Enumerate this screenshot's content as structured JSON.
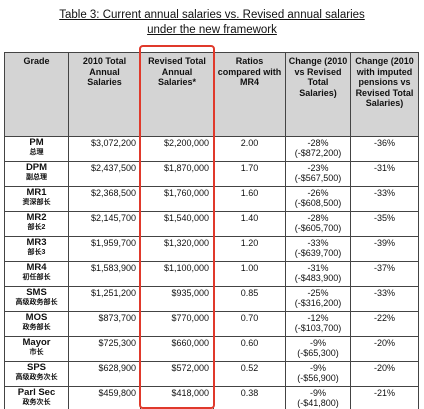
{
  "title_lines": [
    "Table 3: Current annual salaries vs. Revised annual salaries",
    "under the new framework"
  ],
  "table": {
    "header": [
      "Grade",
      "2010 Total Annual Salaries",
      "Revised Total Annual Salaries*",
      "Ratios compared with MR4",
      "Change (2010 vs Revised Total Salaries)",
      "Change (2010 with imputed pensions vs Revised Total Salaries)"
    ],
    "rows": [
      [
        [
          "PM",
          "总理"
        ],
        "$3,072,200",
        "$2,200,000",
        "2.00",
        [
          "-28%",
          "(-$872,200)"
        ],
        "-36%"
      ],
      [
        [
          "DPM",
          "副总理"
        ],
        "$2,437,500",
        "$1,870,000",
        "1.70",
        [
          "-23%",
          "(-$567,500)"
        ],
        "-31%"
      ],
      [
        [
          "MR1",
          "资深部长"
        ],
        "$2,368,500",
        "$1,760,000",
        "1.60",
        [
          "-26%",
          "(-$608,500)"
        ],
        "-33%"
      ],
      [
        [
          "MR2",
          "部长2"
        ],
        "$2,145,700",
        "$1,540,000",
        "1.40",
        [
          "-28%",
          "(-$605,700)"
        ],
        "-35%"
      ],
      [
        [
          "MR3",
          "部长3"
        ],
        "$1,959,700",
        "$1,320,000",
        "1.20",
        [
          "-33%",
          "(-$639,700)"
        ],
        "-39%"
      ],
      [
        [
          "MR4",
          "初任部长"
        ],
        "$1,583,900",
        "$1,100,000",
        "1.00",
        [
          "-31%",
          "(-$483,900)"
        ],
        "-37%"
      ],
      [
        [
          "SMS",
          "高级政务部长"
        ],
        "$1,251,200",
        "$935,000",
        "0.85",
        [
          "-25%",
          "(-$316,200)"
        ],
        "-33%"
      ],
      [
        [
          "MOS",
          "政务部长"
        ],
        "$873,700",
        "$770,000",
        "0.70",
        [
          "-12%",
          "(-$103,700)"
        ],
        "-22%"
      ],
      [
        [
          "Mayor",
          "市长"
        ],
        "$725,300",
        "$660,000",
        "0.60",
        [
          "-9%",
          "(-$65,300)"
        ],
        "-20%"
      ],
      [
        [
          "SPS",
          "高级政务次长"
        ],
        "$628,900",
        "$572,000",
        "0.52",
        [
          "-9%",
          "(-$56,900)"
        ],
        "-20%"
      ],
      [
        [
          "Parl Sec",
          "政务次长"
        ],
        "$459,800",
        "$418,000",
        "0.38",
        [
          "-9%",
          "(-$41,800)"
        ],
        "-21%"
      ]
    ]
  }
}
